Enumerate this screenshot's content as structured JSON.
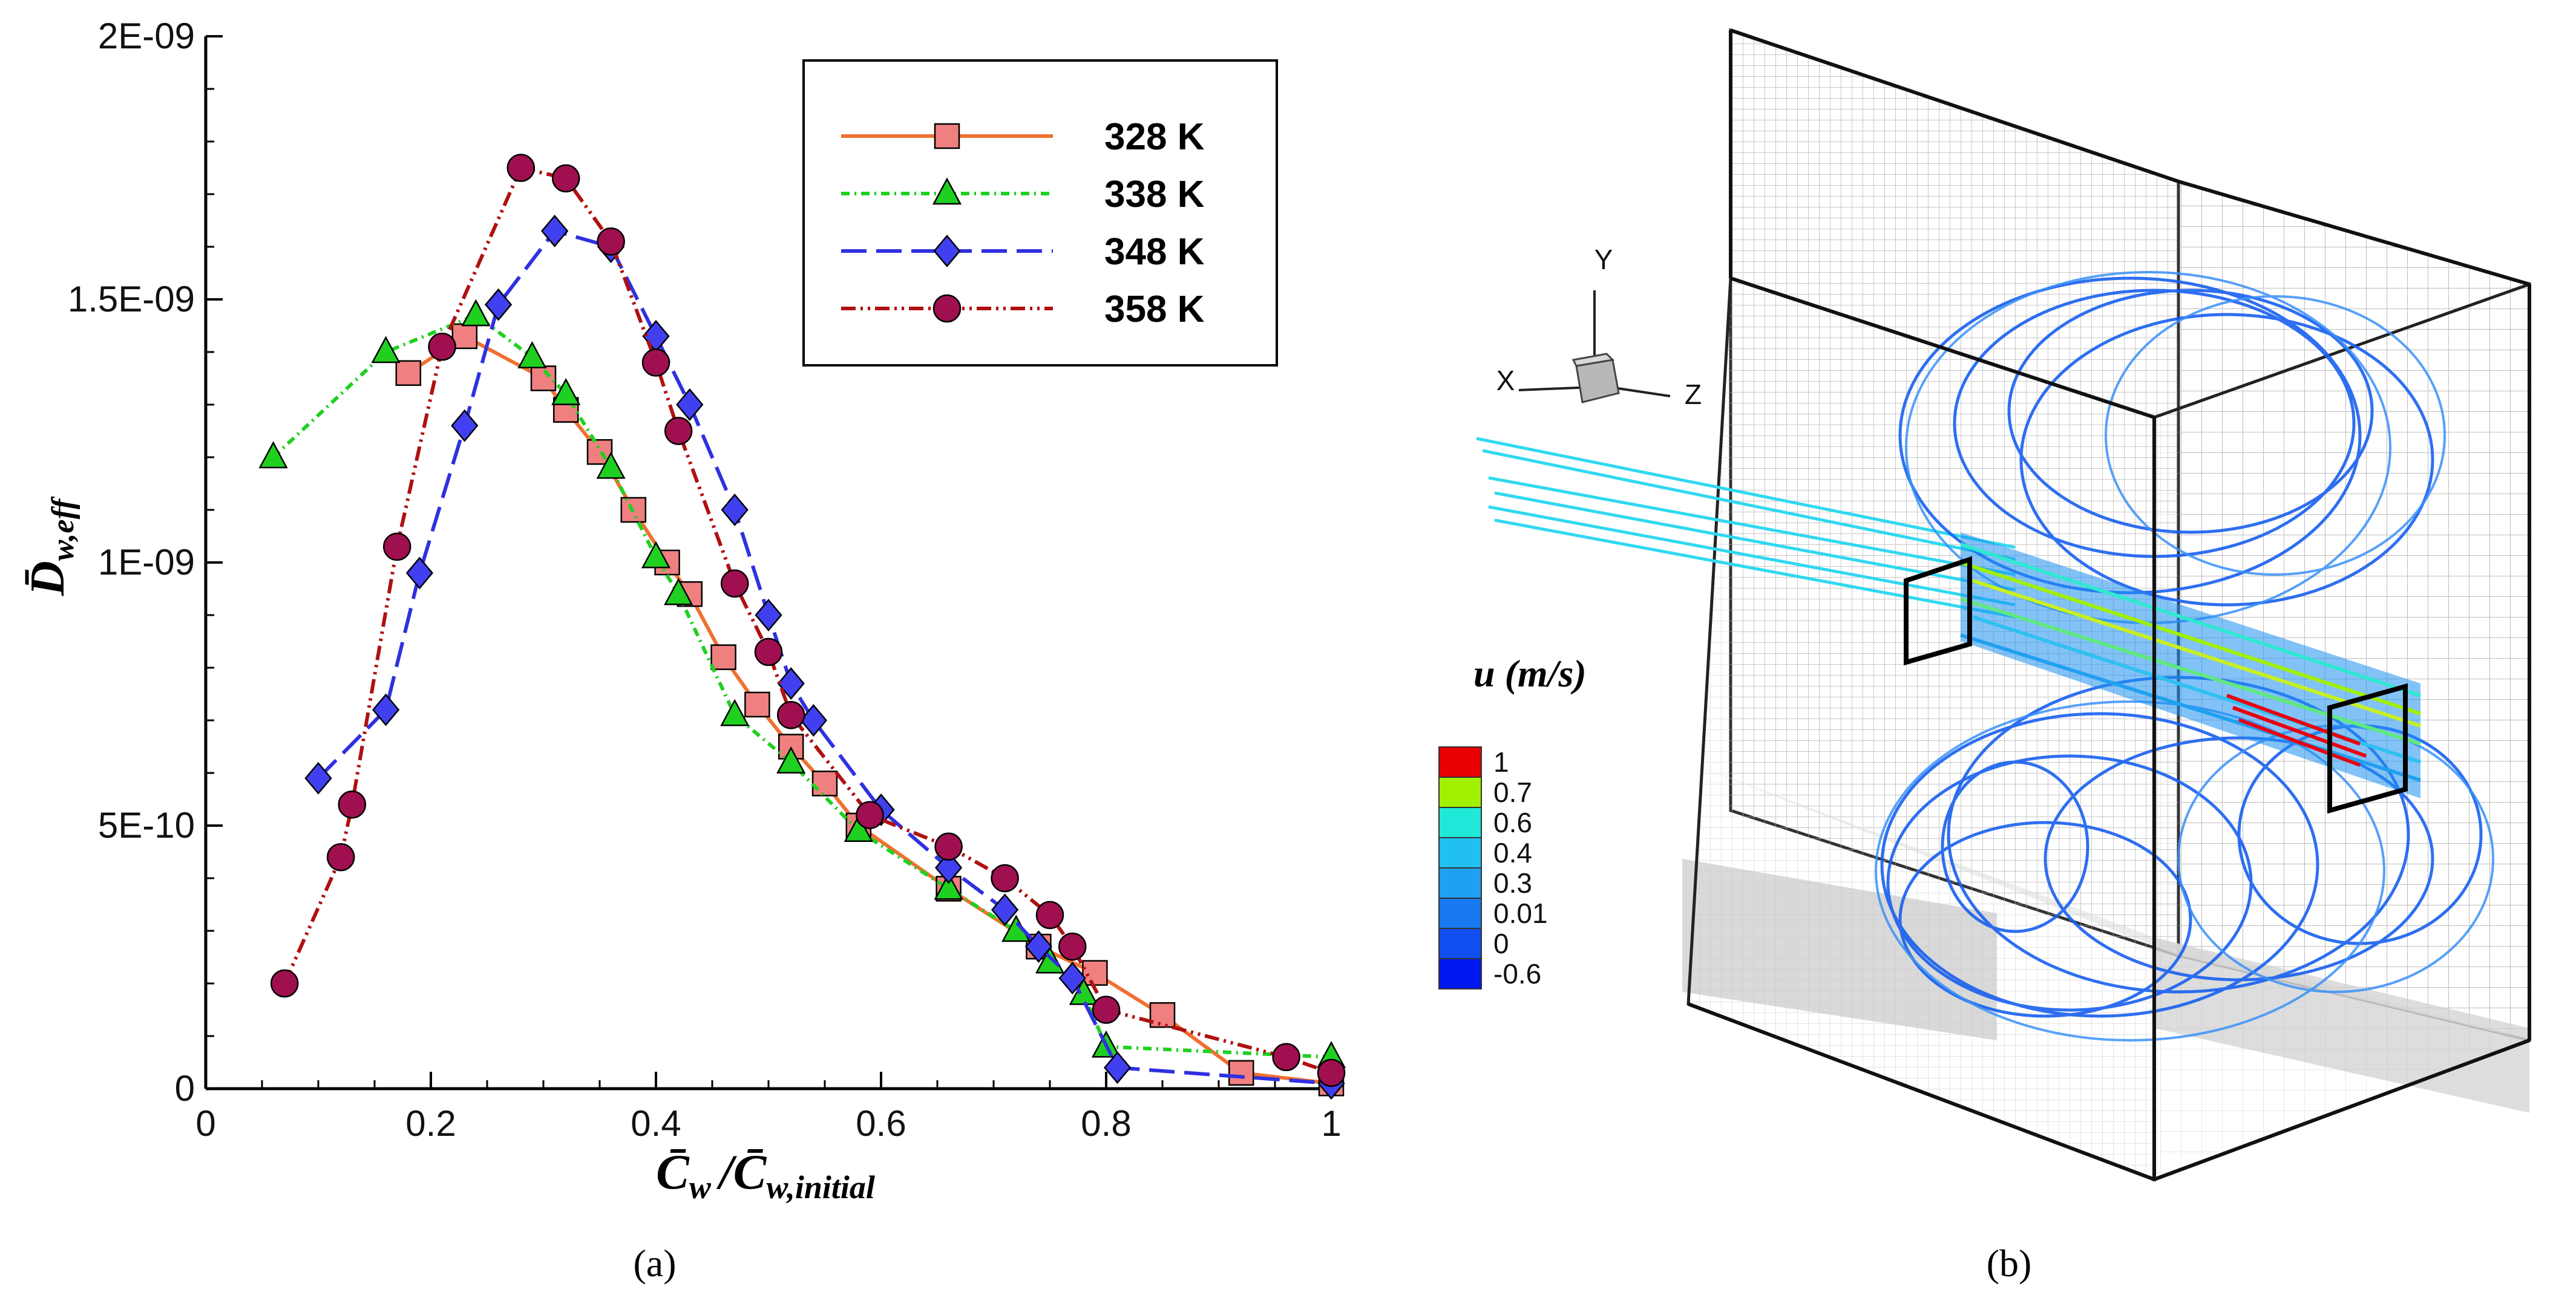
{
  "panel_a": {
    "caption": "(a)",
    "chart_data": {
      "type": "line",
      "xlabel_main": "C̄",
      "xlabel_sub": "w",
      "xlabel_den": "/C̄",
      "xlabel_den_sub": "w,initial",
      "ylabel_main": "D̄",
      "ylabel_sub": "w,eff",
      "xlim": [
        0,
        1
      ],
      "ylim": [
        0,
        2e-09
      ],
      "x_ticks": [
        0,
        0.2,
        0.4,
        0.6,
        0.8,
        1
      ],
      "x_tick_labels": [
        "0",
        "0.2",
        "0.4",
        "0.6",
        "0.8",
        "1"
      ],
      "y_ticks": [
        0,
        5e-10,
        1e-09,
        1.5e-09,
        2e-09
      ],
      "y_tick_labels": [
        "0",
        "5E-10",
        "1E-09",
        "1.5E-09",
        "2E-09"
      ],
      "series": [
        {
          "name": "328 K",
          "color": "#F07030",
          "marker": "square",
          "marker_fill": "#F08080",
          "dash": "",
          "x": [
            0.18,
            0.23,
            0.3,
            0.32,
            0.35,
            0.38,
            0.41,
            0.43,
            0.46,
            0.49,
            0.52,
            0.55,
            0.58,
            0.66,
            0.74,
            0.79,
            0.85,
            0.92,
            1.0
          ],
          "y": [
            1.36e-09,
            1.43e-09,
            1.35e-09,
            1.29e-09,
            1.21e-09,
            1.1e-09,
            1e-09,
            9.4e-10,
            8.2e-10,
            7.3e-10,
            6.5e-10,
            5.8e-10,
            5e-10,
            3.8e-10,
            2.7e-10,
            2.2e-10,
            1.4e-10,
            3e-11,
            1e-11
          ]
        },
        {
          "name": "338 K",
          "color": "#20D020",
          "marker": "triangle",
          "marker_fill": "#20D020",
          "dash": "14,8,3,8",
          "x": [
            0.06,
            0.16,
            0.24,
            0.29,
            0.32,
            0.36,
            0.4,
            0.42,
            0.47,
            0.52,
            0.58,
            0.66,
            0.72,
            0.75,
            0.78,
            0.8,
            1.0
          ],
          "y": [
            1.2e-09,
            1.4e-09,
            1.47e-09,
            1.39e-09,
            1.32e-09,
            1.18e-09,
            1.01e-09,
            9.4e-10,
            7.1e-10,
            6.2e-10,
            4.9e-10,
            3.8e-10,
            3e-10,
            2.4e-10,
            1.8e-10,
            8e-11,
            6e-11
          ]
        },
        {
          "name": "348 K",
          "color": "#3030E0",
          "marker": "diamond",
          "marker_fill": "#4040F0",
          "dash": "42,16",
          "x": [
            0.1,
            0.16,
            0.19,
            0.23,
            0.26,
            0.31,
            0.36,
            0.4,
            0.43,
            0.47,
            0.5,
            0.52,
            0.54,
            0.6,
            0.66,
            0.71,
            0.74,
            0.77,
            0.81,
            1.0
          ],
          "y": [
            5.9e-10,
            7.2e-10,
            9.8e-10,
            1.26e-09,
            1.49e-09,
            1.63e-09,
            1.6e-09,
            1.43e-09,
            1.3e-09,
            1.1e-09,
            9e-10,
            7.7e-10,
            7e-10,
            5.3e-10,
            4.2e-10,
            3.4e-10,
            2.7e-10,
            2.1e-10,
            4e-11,
            1e-11
          ]
        },
        {
          "name": "358 K",
          "color": "#B01010",
          "marker": "circle",
          "marker_fill": "#A01050",
          "dash": "24,8,4,8,4,8",
          "x": [
            0.07,
            0.12,
            0.13,
            0.17,
            0.21,
            0.28,
            0.32,
            0.36,
            0.4,
            0.42,
            0.47,
            0.5,
            0.52,
            0.59,
            0.66,
            0.71,
            0.75,
            0.77,
            0.8,
            0.96,
            1.0
          ],
          "y": [
            2e-10,
            4.4e-10,
            5.4e-10,
            1.03e-09,
            1.41e-09,
            1.75e-09,
            1.73e-09,
            1.61e-09,
            1.38e-09,
            1.25e-09,
            9.6e-10,
            8.3e-10,
            7.1e-10,
            5.2e-10,
            4.6e-10,
            4e-10,
            3.3e-10,
            2.7e-10,
            1.5e-10,
            6e-11,
            3e-11
          ]
        }
      ]
    }
  },
  "panel_b": {
    "caption": "(b)",
    "colorbar": {
      "title": "u (m/s)",
      "levels": [
        "1",
        "0.7",
        "0.6",
        "0.4",
        "0.3",
        "0.01",
        "0",
        "-0.6"
      ],
      "colors": [
        "#E80000",
        "#A0F000",
        "#20E8D8",
        "#20C0F0",
        "#20A0F0",
        "#1878F0",
        "#1050F0",
        "#0018F0"
      ]
    },
    "axes_triad": {
      "y": "Y",
      "x": "X",
      "z": "Z"
    }
  }
}
